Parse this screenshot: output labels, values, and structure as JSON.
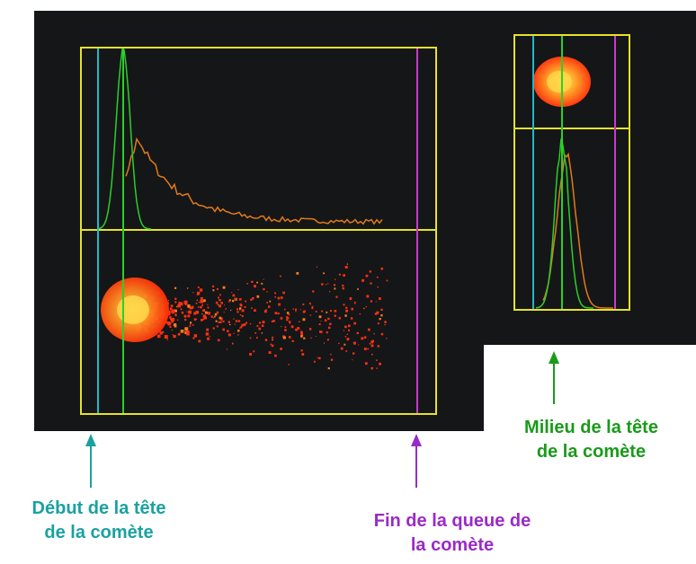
{
  "labels": {
    "start": {
      "line1": "Début de la tête",
      "line2": "de la comète"
    },
    "end": {
      "line1": "Fin de la queue de",
      "line2": "la comète"
    },
    "middle": {
      "line1": "Milieu de la tête",
      "line2": "de la comète"
    }
  },
  "colors": {
    "start_marker": "#1aa1a1",
    "end_marker": "#9a2ac7",
    "middle_marker": "#1a9a1a",
    "box": "#e6e22a",
    "head_profile": "#2ad02a",
    "total_profile": "#e07a1a",
    "comet": "#ff3a10"
  }
}
